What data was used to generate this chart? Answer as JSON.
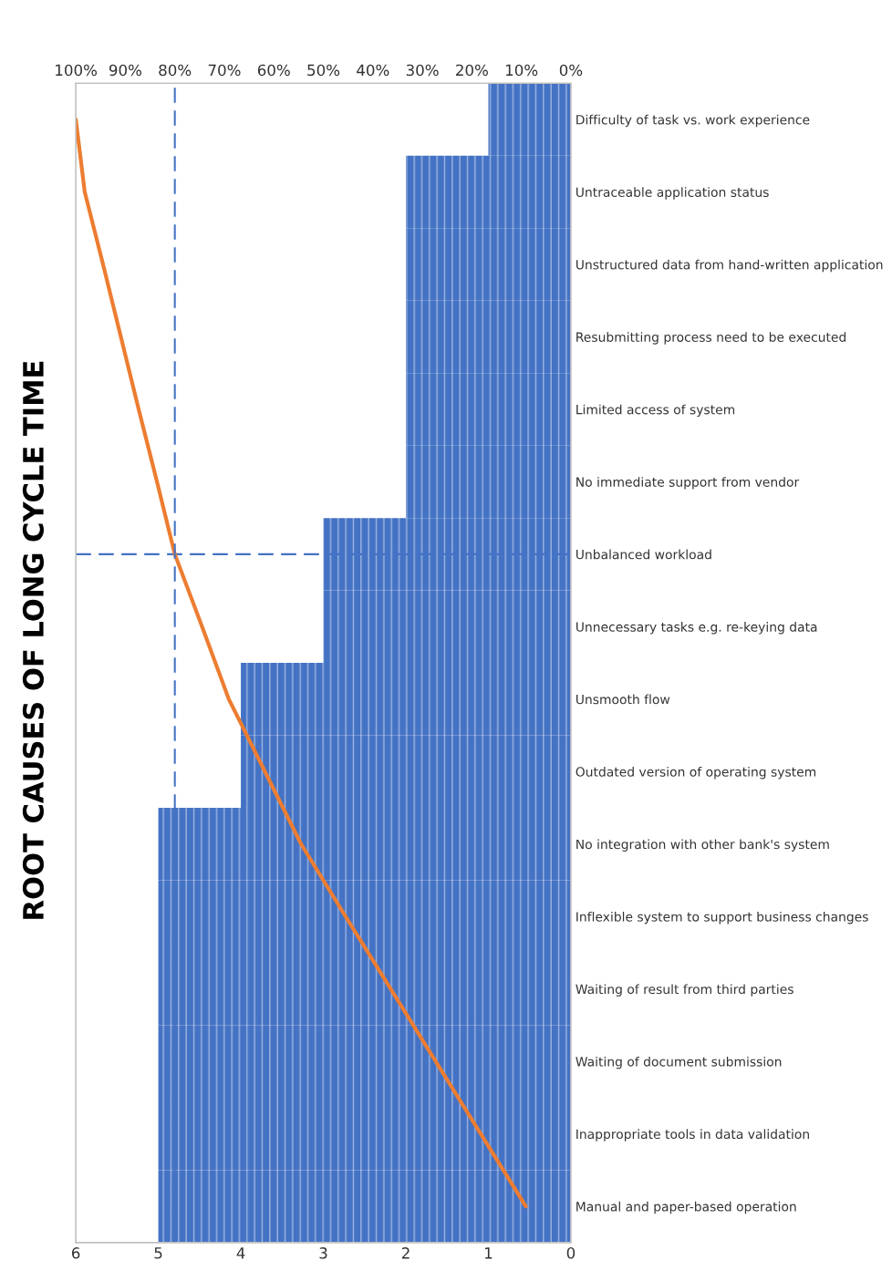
{
  "chart_data": {
    "type": "bar",
    "orientation": "horizontal",
    "title": "ROOT CAUSES OF LONG CYCLE TIME",
    "categories": [
      "Difficulty of task vs. work experience",
      "Untraceable application status",
      "Unstructured data from hand-written application",
      "Resubmitting process need to be executed",
      "Limited access of system",
      "No immediate support from vendor",
      "Unbalanced workload",
      "Unnecessary tasks e.g. re-keying data",
      "Unsmooth flow",
      "Outdated version of operating system",
      "No integration with other bank's system",
      "Inflexible system to support business changes",
      "Waiting of result from third parties",
      "Waiting of document submission",
      "Inappropriate tools in data validation",
      "Manual and paper-based operation"
    ],
    "series": [
      {
        "color": "#4472c4",
        "values": [
          1,
          2,
          2,
          2,
          2,
          2,
          3,
          3,
          4,
          4,
          5,
          5,
          5,
          5,
          5,
          5
        ]
      },
      {
        "type": "line",
        "axis": "x2",
        "color": "#ed7d31",
        "values": [
          100,
          98.2,
          94.5,
          90.9,
          87.3,
          83.6,
          80.0,
          74.5,
          69.1,
          61.8,
          54.5,
          45.5,
          36.4,
          27.3,
          18.2,
          9.1
        ]
      }
    ],
    "xlim": [
      6,
      0
    ],
    "xticks": [
      0,
      1,
      2,
      3,
      4,
      5,
      6
    ],
    "x2lim": [
      100,
      0
    ],
    "x2ticks": [
      {
        "value": 0,
        "label": "0%"
      },
      {
        "value": 10,
        "label": "10%"
      },
      {
        "value": 20,
        "label": "20%"
      },
      {
        "value": 30,
        "label": "30%"
      },
      {
        "value": 40,
        "label": "40%"
      },
      {
        "value": 50,
        "label": "50%"
      },
      {
        "value": 60,
        "label": "60%"
      },
      {
        "value": 70,
        "label": "70%"
      },
      {
        "value": 80,
        "label": "80%"
      },
      {
        "value": 90,
        "label": "90%"
      },
      {
        "value": 100,
        "label": "100%"
      }
    ],
    "ref_lines": [
      {
        "axis": "x2",
        "value": 80,
        "color": "#4472c4",
        "line_style": "dashed"
      },
      {
        "axis": "y",
        "value": "Unbalanced workload",
        "color": "#4472c4",
        "line_style": "dashed"
      }
    ],
    "grid": false,
    "legend": false
  }
}
